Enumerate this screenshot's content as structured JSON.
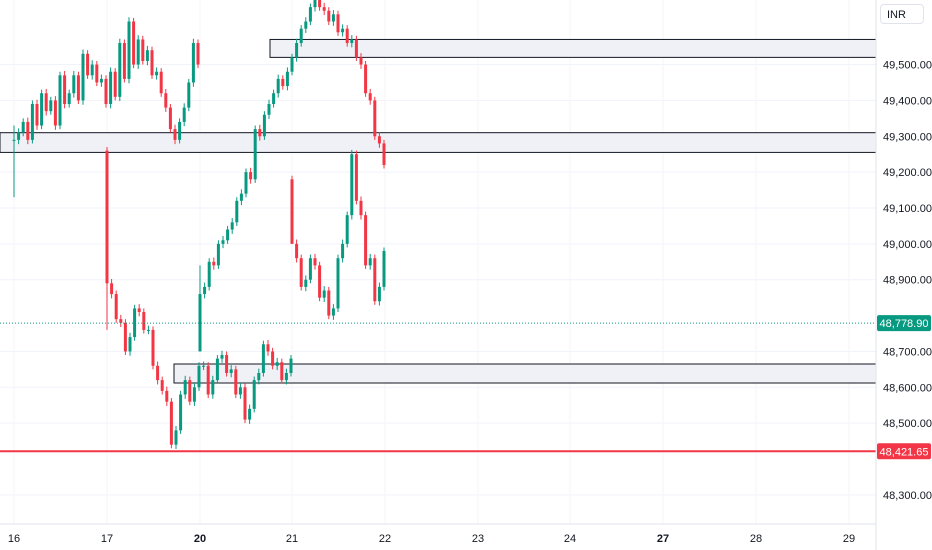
{
  "currency": "INR",
  "chart_data": {
    "type": "candlestick",
    "y_axis": {
      "range": [
        48230,
        49680
      ],
      "ticks": [
        {
          "value": 49500,
          "label": "49,500.00"
        },
        {
          "value": 49400,
          "label": "49,400.00"
        },
        {
          "value": 49300,
          "label": "49,300.00"
        },
        {
          "value": 49200,
          "label": "49,200.00"
        },
        {
          "value": 49100,
          "label": "49,100.00"
        },
        {
          "value": 49000,
          "label": "49,000.00"
        },
        {
          "value": 48900,
          "label": "48,900.00"
        },
        {
          "value": 48700,
          "label": "48,700.00"
        },
        {
          "value": 48600,
          "label": "48,600.00"
        },
        {
          "value": 48500,
          "label": "48,500.00"
        },
        {
          "value": 48300,
          "label": "48,300.00"
        }
      ]
    },
    "x_axis": {
      "labels": [
        {
          "label": "16",
          "bold": false
        },
        {
          "label": "17",
          "bold": false
        },
        {
          "label": "20",
          "bold": true
        },
        {
          "label": "21",
          "bold": false
        },
        {
          "label": "22",
          "bold": false
        },
        {
          "label": "23",
          "bold": false
        },
        {
          "label": "24",
          "bold": false
        },
        {
          "label": "27",
          "bold": true
        },
        {
          "label": "28",
          "bold": false
        },
        {
          "label": "29",
          "bold": false
        }
      ]
    },
    "price_markers": [
      {
        "value": 48778.9,
        "label": "48,778.90",
        "color": "#089981",
        "style": "dotted"
      },
      {
        "value": 48421.65,
        "label": "48,421.65",
        "color": "#f23645",
        "style": "solid"
      }
    ],
    "zones": [
      {
        "name": "supply-zone-upper",
        "x_start": "20",
        "low": 49520,
        "high": 49570
      },
      {
        "name": "supply-zone-middle",
        "x_start": "16",
        "low": 49255,
        "high": 49310
      },
      {
        "name": "demand-zone",
        "x_start": "19.7",
        "low": 48612,
        "high": 48665
      }
    ],
    "candle_segments": [
      {
        "from": [
          49290,
          49130,
          49330,
          49290
        ],
        "waypoints": [
          [
            49310,
            49340
          ],
          [
            49290,
            49390
          ],
          [
            49330,
            49420
          ],
          [
            49370,
            49400
          ],
          [
            49330,
            49470
          ],
          [
            49390,
            49420
          ],
          [
            49470,
            49400
          ],
          [
            49530,
            49470
          ],
          [
            49500,
            49450
          ],
          [
            49460,
            49390
          ],
          [
            49480,
            49410
          ],
          [
            49560,
            49460
          ],
          [
            49620,
            49500
          ],
          [
            49570,
            49510
          ],
          [
            49540,
            49470
          ],
          [
            49480,
            49420
          ],
          [
            49380,
            49320
          ],
          [
            49290,
            49340
          ],
          [
            49380,
            49450
          ],
          [
            49560,
            49500
          ]
        ]
      },
      {
        "from": [
          49260,
          48760,
          49270,
          48890
        ],
        "waypoints": [
          [
            48860,
            48790
          ],
          [
            48780,
            48700
          ],
          [
            48740,
            48820
          ],
          [
            48810,
            48760
          ],
          [
            48760,
            48660
          ],
          [
            48620,
            48590
          ],
          [
            48560,
            48440
          ],
          [
            48480,
            48580
          ],
          [
            48620,
            48560
          ],
          [
            48600,
            48660
          ],
          [
            48660,
            48580
          ],
          [
            48620,
            48680
          ],
          [
            48690,
            48640
          ],
          [
            48650,
            48580
          ],
          [
            48600,
            48510
          ],
          [
            48540,
            48620
          ],
          [
            48640,
            48720
          ],
          [
            48700,
            48660
          ],
          [
            48670,
            48620
          ],
          [
            48640,
            48680
          ]
        ]
      },
      {
        "from": [
          48700,
          48860,
          48940,
          48860
        ],
        "waypoints": [
          [
            48880,
            48950
          ],
          [
            48940,
            49000
          ],
          [
            49010,
            49040
          ],
          [
            49060,
            49120
          ],
          [
            49140,
            49200
          ],
          [
            49180,
            49320
          ],
          [
            49300,
            49360
          ],
          [
            49390,
            49420
          ],
          [
            49460,
            49440
          ],
          [
            49480,
            49520
          ],
          [
            49560,
            49600
          ],
          [
            49620,
            49660
          ],
          [
            49690,
            49660
          ],
          [
            49650,
            49620
          ],
          [
            49640,
            49590
          ],
          [
            49600,
            49560
          ],
          [
            49570,
            49520
          ],
          [
            49500,
            49420
          ],
          [
            49400,
            49300
          ],
          [
            49280,
            49220
          ]
        ]
      },
      {
        "from": [
          49180,
          49120,
          49190,
          49000
        ],
        "waypoints": [
          [
            48960,
            48880
          ],
          [
            48900,
            48960
          ],
          [
            48940,
            48850
          ],
          [
            48870,
            48800
          ],
          [
            48820,
            48960
          ],
          [
            49000,
            49080
          ],
          [
            49250,
            49120
          ],
          [
            49080,
            48940
          ],
          [
            48960,
            48840
          ],
          [
            48880,
            48980
          ],
          [
            48960,
            48900
          ],
          [
            48940,
            48880
          ],
          [
            48900,
            48820
          ],
          [
            48860,
            48790
          ],
          [
            48820,
            48760
          ],
          [
            48730,
            48620
          ],
          [
            48650,
            48700
          ],
          [
            48760,
            48780
          ]
        ]
      }
    ]
  }
}
